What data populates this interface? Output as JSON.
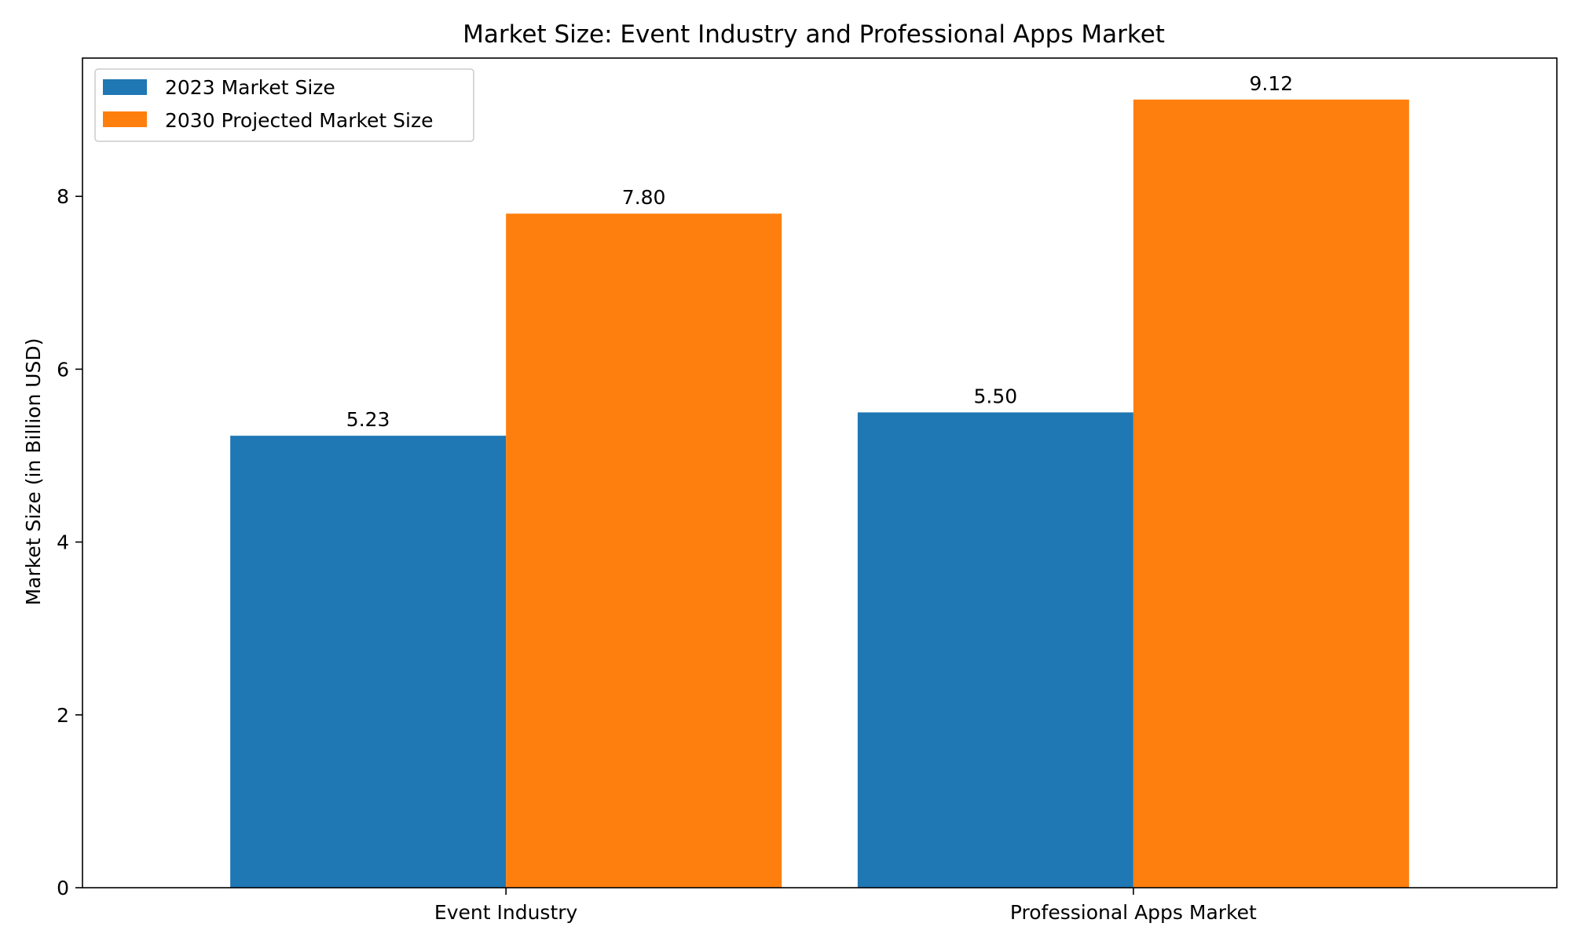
{
  "chart_data": {
    "type": "bar",
    "title": "Market Size: Event Industry and Professional Apps Market",
    "xlabel": "",
    "ylabel": "Market Size (in Billion USD)",
    "categories": [
      "Event Industry",
      "Professional Apps Market"
    ],
    "series": [
      {
        "name": "2023 Market Size",
        "color": "#1f77b4",
        "values": [
          5.23,
          5.5
        ],
        "labels": [
          "5.23",
          "5.50"
        ]
      },
      {
        "name": "2030 Projected Market Size",
        "color": "#ff7f0e",
        "values": [
          7.8,
          9.12
        ],
        "labels": [
          "7.80",
          "9.12"
        ]
      }
    ],
    "ylim": [
      0,
      9.6
    ],
    "yticks": [
      0,
      2,
      4,
      6,
      8
    ],
    "ytick_labels": [
      "0",
      "2",
      "4",
      "6",
      "8"
    ],
    "grid": false,
    "legend_position": "top-left"
  }
}
